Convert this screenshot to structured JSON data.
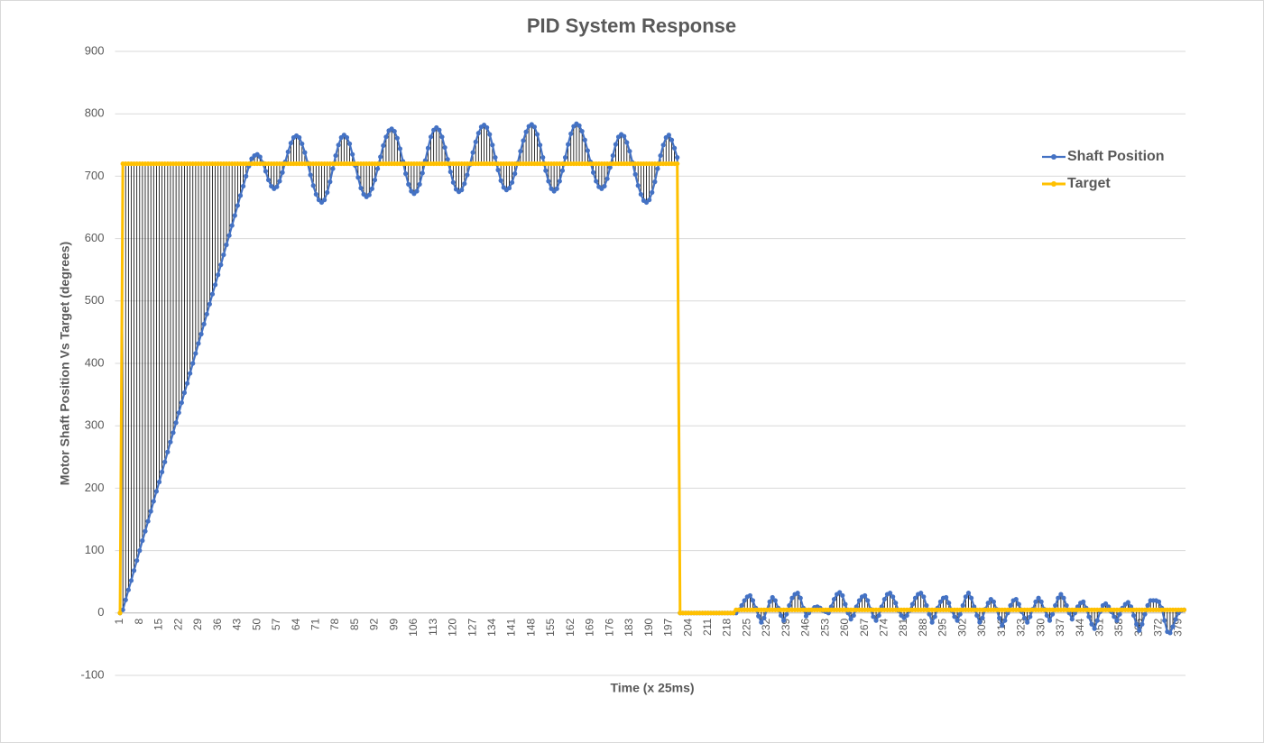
{
  "chart_data": {
    "type": "line",
    "title": "PID System Response",
    "x_label": "Time (x 25ms)",
    "y_label": "Motor Shaft Position Vs Target (degrees)",
    "categories": [
      1,
      null,
      null,
      null,
      null,
      null,
      null,
      8,
      null,
      null,
      null,
      null,
      null,
      null,
      15,
      null,
      null,
      null,
      null,
      null,
      null,
      22,
      null,
      null,
      null,
      null,
      null,
      null,
      29,
      null,
      null,
      null,
      null,
      null,
      null,
      36,
      null,
      null,
      null,
      null,
      null,
      null,
      43,
      null,
      null,
      null,
      null,
      null,
      null,
      50,
      null,
      null,
      null,
      null,
      null,
      null,
      57,
      null,
      null,
      null,
      null,
      null,
      null,
      64,
      null,
      null,
      null,
      null,
      null,
      null,
      71,
      null,
      null,
      null,
      null,
      null,
      null,
      78,
      null,
      null,
      null,
      null,
      null,
      null,
      85,
      null,
      null,
      null,
      null,
      null,
      null,
      92,
      null,
      null,
      null,
      null,
      null,
      null,
      99,
      null,
      null,
      null,
      null,
      null,
      null,
      106,
      null,
      null,
      null,
      null,
      null,
      null,
      113,
      null,
      null,
      null,
      null,
      null,
      null,
      120,
      null,
      null,
      null,
      null,
      null,
      null,
      127,
      null,
      null,
      null,
      null,
      null,
      null,
      134,
      null,
      null,
      null,
      null,
      null,
      null,
      141,
      null,
      null,
      null,
      null,
      null,
      null,
      148,
      null,
      null,
      null,
      null,
      null,
      null,
      155,
      null,
      null,
      null,
      null,
      null,
      null,
      162,
      null,
      null,
      null,
      null,
      null,
      null,
      169,
      null,
      null,
      null,
      null,
      null,
      null,
      176,
      null,
      null,
      null,
      null,
      null,
      null,
      183,
      null,
      null,
      null,
      null,
      null,
      null,
      190,
      null,
      null,
      null,
      null,
      null,
      null,
      197,
      null,
      null,
      null,
      null,
      null,
      null,
      204,
      null,
      null,
      null,
      null,
      null,
      null,
      211,
      null,
      null,
      null,
      null,
      null,
      null,
      218,
      null,
      null,
      null,
      null,
      null,
      null,
      225,
      null,
      null,
      null,
      null,
      null,
      null,
      232,
      null,
      null,
      null,
      null,
      null,
      null,
      239,
      null,
      null,
      null,
      null,
      null,
      null,
      246,
      null,
      null,
      null,
      null,
      null,
      null,
      253,
      null,
      null,
      null,
      null,
      null,
      null,
      260,
      null,
      null,
      null,
      null,
      null,
      null,
      267,
      null,
      null,
      null,
      null,
      null,
      null,
      274,
      null,
      null,
      null,
      null,
      null,
      null,
      281,
      null,
      null,
      null,
      null,
      null,
      null,
      288,
      null,
      null,
      null,
      null,
      null,
      null,
      295,
      null,
      null,
      null,
      null,
      null,
      null,
      302,
      null,
      null,
      null,
      null,
      null,
      null,
      309,
      null,
      null,
      null,
      null,
      null,
      null,
      316,
      null,
      null,
      null,
      null,
      null,
      null,
      323,
      null,
      null,
      null,
      null,
      null,
      null,
      330,
      null,
      null,
      null,
      null,
      null,
      null,
      337,
      null,
      null,
      null,
      null,
      null,
      null,
      344,
      null,
      null,
      null,
      null,
      null,
      null,
      351,
      null,
      null,
      null,
      null,
      null,
      null,
      358,
      null,
      null,
      null,
      null,
      null,
      null,
      365,
      null,
      null,
      null,
      null,
      null,
      null,
      372,
      null,
      null,
      null,
      null,
      null,
      null,
      379,
      null,
      null
    ],
    "series": [
      {
        "name": "Shaft Position",
        "color": "#4472c4",
        "values": [
          0,
          5,
          21,
          37,
          52,
          68,
          84,
          100,
          116,
          131,
          147,
          163,
          179,
          195,
          210,
          226,
          242,
          258,
          274,
          289,
          305,
          321,
          337,
          353,
          368,
          384,
          400,
          416,
          432,
          447,
          463,
          479,
          495,
          511,
          526,
          542,
          558,
          574,
          590,
          605,
          621,
          637,
          653,
          669,
          684,
          700,
          716,
          728,
          733,
          735,
          731,
          721,
          708,
          694,
          684,
          680,
          683,
          692,
          706,
          723,
          739,
          753,
          762,
          765,
          762,
          752,
          738,
          721,
          702,
          685,
          671,
          662,
          658,
          662,
          674,
          691,
          712,
          733,
          750,
          762,
          766,
          762,
          752,
          735,
          717,
          698,
          681,
          671,
          667,
          670,
          680,
          694,
          712,
          731,
          749,
          763,
          773,
          776,
          772,
          761,
          744,
          724,
          704,
          687,
          676,
          672,
          676,
          687,
          705,
          725,
          745,
          763,
          774,
          778,
          774,
          763,
          746,
          727,
          707,
          690,
          679,
          675,
          678,
          688,
          702,
          719,
          738,
          755,
          769,
          779,
          782,
          778,
          767,
          750,
          730,
          710,
          693,
          682,
          678,
          681,
          690,
          704,
          721,
          740,
          757,
          771,
          780,
          783,
          779,
          767,
          750,
          730,
          709,
          692,
          680,
          676,
          680,
          692,
          709,
          730,
          751,
          768,
          780,
          784,
          781,
          772,
          758,
          741,
          723,
          706,
          692,
          683,
          680,
          684,
          696,
          714,
          733,
          751,
          763,
          767,
          764,
          754,
          740,
          722,
          703,
          685,
          671,
          661,
          658,
          662,
          674,
          691,
          712,
          733,
          750,
          762,
          766,
          758,
          745,
          730,
          0,
          0,
          0,
          0,
          0,
          0,
          0,
          0,
          0,
          0,
          0,
          0,
          0,
          0,
          0,
          0,
          0,
          0,
          0,
          0,
          0,
          5,
          12,
          20,
          26,
          28,
          20,
          8,
          -5,
          -15,
          -8,
          5,
          18,
          25,
          20,
          8,
          -4,
          -12,
          -2,
          12,
          24,
          30,
          32,
          24,
          8,
          -5,
          0,
          5,
          9,
          10,
          8,
          4,
          2,
          0,
          10,
          22,
          30,
          33,
          28,
          14,
          0,
          -10,
          -4,
          10,
          20,
          26,
          28,
          20,
          6,
          -6,
          -12,
          -4,
          10,
          22,
          30,
          32,
          26,
          16,
          4,
          -4,
          -8,
          -4,
          4,
          14,
          24,
          30,
          32,
          26,
          12,
          -2,
          -15,
          -6,
          8,
          18,
          24,
          25,
          16,
          4,
          -6,
          -12,
          -2,
          12,
          26,
          32,
          24,
          10,
          -4,
          -15,
          -8,
          6,
          16,
          22,
          18,
          6,
          -8,
          -20,
          -12,
          0,
          12,
          20,
          22,
          14,
          2,
          -8,
          -15,
          -6,
          6,
          18,
          24,
          18,
          6,
          -4,
          -12,
          -2,
          12,
          24,
          30,
          24,
          12,
          0,
          -10,
          0,
          10,
          16,
          18,
          8,
          -6,
          -18,
          -25,
          -12,
          2,
          12,
          15,
          10,
          2,
          -6,
          -12,
          -2,
          8,
          14,
          17,
          10,
          -4,
          -18,
          -28,
          -18,
          -2,
          12,
          20,
          20,
          20,
          18,
          8,
          -12,
          -30,
          -32,
          -22,
          -10,
          0,
          4,
          5
        ]
      },
      {
        "name": "Target",
        "color": "#ffc000",
        "values": [
          0,
          720,
          720,
          720,
          720,
          720,
          720,
          720,
          720,
          720,
          720,
          720,
          720,
          720,
          720,
          720,
          720,
          720,
          720,
          720,
          720,
          720,
          720,
          720,
          720,
          720,
          720,
          720,
          720,
          720,
          720,
          720,
          720,
          720,
          720,
          720,
          720,
          720,
          720,
          720,
          720,
          720,
          720,
          720,
          720,
          720,
          720,
          720,
          720,
          720,
          720,
          720,
          720,
          720,
          720,
          720,
          720,
          720,
          720,
          720,
          720,
          720,
          720,
          720,
          720,
          720,
          720,
          720,
          720,
          720,
          720,
          720,
          720,
          720,
          720,
          720,
          720,
          720,
          720,
          720,
          720,
          720,
          720,
          720,
          720,
          720,
          720,
          720,
          720,
          720,
          720,
          720,
          720,
          720,
          720,
          720,
          720,
          720,
          720,
          720,
          720,
          720,
          720,
          720,
          720,
          720,
          720,
          720,
          720,
          720,
          720,
          720,
          720,
          720,
          720,
          720,
          720,
          720,
          720,
          720,
          720,
          720,
          720,
          720,
          720,
          720,
          720,
          720,
          720,
          720,
          720,
          720,
          720,
          720,
          720,
          720,
          720,
          720,
          720,
          720,
          720,
          720,
          720,
          720,
          720,
          720,
          720,
          720,
          720,
          720,
          720,
          720,
          720,
          720,
          720,
          720,
          720,
          720,
          720,
          720,
          720,
          720,
          720,
          720,
          720,
          720,
          720,
          720,
          720,
          720,
          720,
          720,
          720,
          720,
          720,
          720,
          720,
          720,
          720,
          720,
          720,
          720,
          720,
          720,
          720,
          720,
          720,
          720,
          720,
          720,
          720,
          720,
          720,
          720,
          720,
          720,
          720,
          720,
          720,
          720,
          0,
          0,
          0,
          0,
          0,
          0,
          0,
          0,
          0,
          0,
          0,
          0,
          0,
          0,
          0,
          0,
          0,
          0,
          0,
          0,
          5,
          5,
          5,
          5,
          5,
          5,
          5,
          5,
          5,
          5,
          5,
          5,
          5,
          5,
          5,
          5,
          5,
          5,
          5,
          5,
          5,
          5,
          5,
          5,
          5,
          5,
          5,
          5,
          5,
          5,
          5,
          5,
          5,
          5,
          5,
          5,
          5,
          5,
          5,
          5,
          5,
          5,
          5,
          5,
          5,
          5,
          5,
          5,
          5,
          5,
          5,
          5,
          5,
          5,
          5,
          5,
          5,
          5,
          5,
          5,
          5,
          5,
          5,
          5,
          5,
          5,
          5,
          5,
          5,
          5,
          5,
          5,
          5,
          5,
          5,
          5,
          5,
          5,
          5,
          5,
          5,
          5,
          5,
          5,
          5,
          5,
          5,
          5,
          5,
          5,
          5,
          5,
          5,
          5,
          5,
          5,
          5,
          5,
          5,
          5,
          5,
          5,
          5,
          5,
          5,
          5,
          5,
          5,
          5,
          5,
          5,
          5,
          5,
          5,
          5,
          5,
          5,
          5,
          5,
          5,
          5,
          5,
          5,
          5,
          5,
          5,
          5,
          5,
          5,
          5,
          5,
          5,
          5,
          5,
          5,
          5,
          5,
          5,
          5,
          5,
          5,
          5,
          5,
          5,
          5,
          5,
          5,
          5,
          5,
          5,
          5,
          5,
          5,
          5,
          5,
          5,
          5,
          5,
          5,
          5,
          5
        ]
      }
    ],
    "ylim": [
      -100,
      900
    ],
    "yticks": [
      -100,
      0,
      100,
      200,
      300,
      400,
      500,
      600,
      700,
      800,
      900
    ],
    "grid": true,
    "drop_lines": true,
    "legend": "right"
  }
}
